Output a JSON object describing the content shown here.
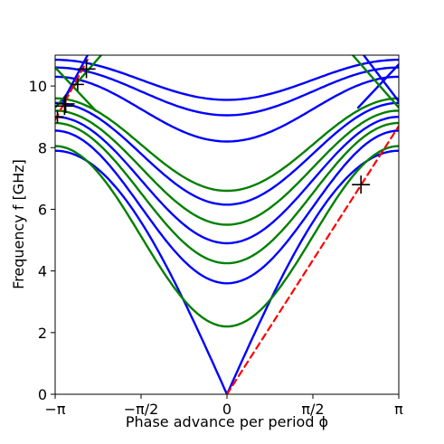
{
  "chart_data": {
    "type": "line",
    "title": "",
    "xlabel": "Phase advance per period ϕ",
    "ylabel": "Frequency f [GHz]",
    "xlim": [
      -3.14159,
      3.14159
    ],
    "ylim": [
      0,
      11
    ],
    "x_ticks": [
      {
        "value": -3.14159,
        "label": "−π"
      },
      {
        "value": -1.5708,
        "label": "−π/2"
      },
      {
        "value": 0,
        "label": "0"
      },
      {
        "value": 1.5708,
        "label": "π/2"
      },
      {
        "value": 3.14159,
        "label": "π"
      }
    ],
    "y_ticks": [
      {
        "value": 0,
        "label": "0"
      },
      {
        "value": 2,
        "label": "2"
      },
      {
        "value": 4,
        "label": "4"
      },
      {
        "value": 6,
        "label": "6"
      },
      {
        "value": 8,
        "label": "8"
      },
      {
        "value": 10,
        "label": "10"
      }
    ],
    "grid": false,
    "series": [
      {
        "color": "#0000ff",
        "kind": "symmetric",
        "values": [
          0,
          7.9
        ]
      },
      {
        "color": "#008000",
        "kind": "symmetric",
        "values": [
          2.2,
          8.05
        ]
      },
      {
        "color": "#0000ff",
        "kind": "symmetric",
        "values": [
          3.6,
          8.55
        ]
      },
      {
        "color": "#008000",
        "kind": "symmetric",
        "values": [
          4.25,
          8.8
        ]
      },
      {
        "color": "#0000ff",
        "kind": "symmetric",
        "values": [
          4.9,
          9.0
        ]
      },
      {
        "color": "#008000",
        "kind": "symmetric",
        "values": [
          5.5,
          9.2
        ]
      },
      {
        "color": "#0000ff",
        "kind": "symmetric",
        "values": [
          6.15,
          9.45
        ]
      },
      {
        "color": "#008000",
        "kind": "symmetric",
        "values": [
          6.6,
          9.6
        ]
      },
      {
        "color": "#0000ff",
        "kind": "symmetric",
        "values": [
          8.2,
          10.3
        ]
      },
      {
        "color": "#0000ff",
        "kind": "symmetric",
        "values": [
          9.05,
          10.6
        ]
      },
      {
        "color": "#0000ff",
        "kind": "symmetric",
        "values": [
          9.55,
          10.85
        ]
      },
      {
        "color": "#008000",
        "kind": "crossing",
        "x": [
          -3.14159,
          -2.4
        ],
        "y": [
          10.6,
          9.2
        ]
      },
      {
        "color": "#008000",
        "kind": "crossing",
        "x": [
          -3.14159,
          -2.3
        ],
        "y": [
          9.3,
          11
        ]
      },
      {
        "color": "#0000ff",
        "kind": "crossing",
        "x": [
          -3.0,
          -2.55
        ],
        "y": [
          9.5,
          11
        ]
      },
      {
        "color": "#0000ff",
        "kind": "crossing",
        "x": [
          2.4,
          3.14159
        ],
        "y": [
          9.3,
          10.7
        ]
      },
      {
        "color": "#008000",
        "kind": "crossing",
        "x": [
          2.3,
          3.14159
        ],
        "y": [
          11,
          9.3
        ]
      },
      {
        "color": "#0000ff",
        "kind": "crossing",
        "x": [
          2.5,
          3.14159
        ],
        "y": [
          11,
          9.5
        ]
      },
      {
        "color": "#ff0000",
        "kind": "dashed",
        "x": [
          0,
          3.14159
        ],
        "y": [
          0,
          8.7
        ]
      },
      {
        "color": "#ff0000",
        "kind": "dashed",
        "x": [
          -3.14159,
          -2.55
        ],
        "y": [
          8.9,
          10.85
        ]
      }
    ],
    "markers": [
      {
        "x": -3.1,
        "y": 9.0,
        "size": 7
      },
      {
        "x": -2.97,
        "y": 9.35,
        "size": 10
      },
      {
        "x": -2.95,
        "y": 9.42,
        "size": 10
      },
      {
        "x": -2.73,
        "y": 10.05,
        "size": 7
      },
      {
        "x": -2.57,
        "y": 10.55,
        "size": 10
      },
      {
        "x": 2.45,
        "y": 6.8,
        "size": 10
      }
    ]
  }
}
